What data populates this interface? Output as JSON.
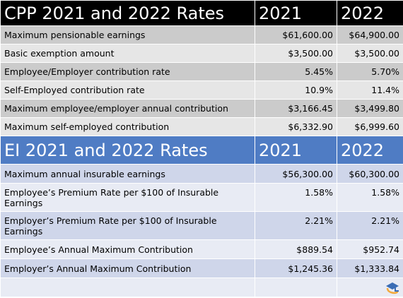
{
  "cpp": {
    "header": {
      "title": "CPP 2021 and 2022 Rates",
      "col2021": "2021",
      "col2022": "2022"
    },
    "rows": [
      {
        "label": "Maximum pensionable earnings",
        "v2021": "$61,600.00",
        "v2022": "$64,900.00"
      },
      {
        "label": "Basic exemption amount",
        "v2021": "$3,500.00",
        "v2022": "$3,500.00"
      },
      {
        "label": "Employee/Employer contribution rate",
        "v2021": "5.45%",
        "v2022": "5.70%"
      },
      {
        "label": "Self-Employed contribution rate",
        "v2021": "10.9%",
        "v2022": "11.4%"
      },
      {
        "label": "Maximum employee/employer annual contribution",
        "v2021": "$3,166.45",
        "v2022": "$3,499.80"
      },
      {
        "label": "Maximum self-employed contribution",
        "v2021": "$6,332.90",
        "v2022": "$6,999.60"
      }
    ]
  },
  "ei": {
    "header": {
      "title": "EI 2021 and 2022 Rates",
      "col2021": "2021",
      "col2022": "2022"
    },
    "rows": [
      {
        "label": "Maximum annual insurable earnings",
        "v2021": "$56,300.00",
        "v2022": "$60,300.00"
      },
      {
        "label": "Employee’s Premium Rate per $100 of Insurable Earnings",
        "v2021": "1.58%",
        "v2022": "1.58%"
      },
      {
        "label": "Employer’s Premium Rate per $100 of Insurable Earnings",
        "v2021": "2.21%",
        "v2022": "2.21%"
      },
      {
        "label": "Employee’s Annual Maximum Contribution",
        "v2021": "$889.54",
        "v2022": "$952.74"
      },
      {
        "label": "Employer’s Annual Maximum Contribution",
        "v2021": "$1,245.36",
        "v2022": "$1,333.84"
      },
      {
        "label": "",
        "v2021": "",
        "v2022": ""
      }
    ]
  },
  "colors": {
    "cpp_header_bg": "#000000",
    "ei_header_bg": "#4f7cc4",
    "cpp_row_dark": "#cbcbcb",
    "cpp_row_light": "#e6e6e6",
    "ei_row_dark": "#cfd6ea",
    "ei_row_light": "#e8ebf4"
  },
  "logo_icon": "brand-logo-icon"
}
